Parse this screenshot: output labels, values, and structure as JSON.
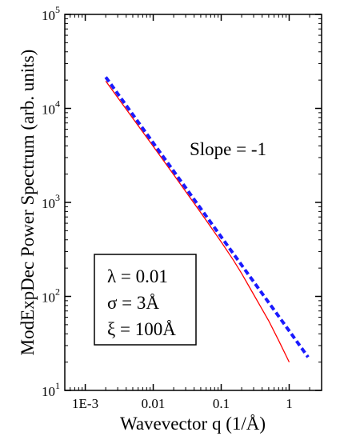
{
  "chart_data": {
    "type": "line",
    "title": "",
    "xlabel": "Wavevector q (1/Å)",
    "ylabel": "ModExpDec Power Spectrum (arb. units)",
    "xscale": "log",
    "yscale": "log",
    "xlim": [
      0.0005,
      3
    ],
    "ylim": [
      10,
      100000
    ],
    "grid": false,
    "x_ticks": [
      {
        "value": 0.001,
        "label": "1E-3"
      },
      {
        "value": 0.01,
        "label": "0.01"
      },
      {
        "value": 0.1,
        "label": "0.1"
      },
      {
        "value": 1,
        "label": "1"
      }
    ],
    "y_ticks": [
      {
        "value": 10,
        "base": "10",
        "exp": "1"
      },
      {
        "value": 100,
        "base": "10",
        "exp": "2"
      },
      {
        "value": 1000,
        "base": "10",
        "exp": "3"
      },
      {
        "value": 10000,
        "base": "10",
        "exp": "4"
      },
      {
        "value": 100000,
        "base": "10",
        "exp": "5"
      }
    ],
    "series": [
      {
        "color": "#ff0000",
        "style": "solid",
        "x": [
          0.002,
          0.005,
          0.01,
          0.02,
          0.05,
          0.1,
          0.15,
          0.2,
          0.3,
          0.5,
          0.7,
          1.0
        ],
        "y": [
          19500,
          7850,
          3950,
          1970,
          780,
          380,
          245,
          175,
          105,
          55,
          34,
          20
        ]
      },
      {
        "color": "#1a1aff",
        "style": "dashed",
        "x": [
          0.002,
          0.01,
          0.1,
          1.0,
          1.9
        ],
        "y": [
          21500,
          4300,
          430,
          43,
          22.6
        ]
      }
    ],
    "annotations": [
      {
        "id": "slope",
        "text": "Slope = -1"
      }
    ],
    "param_box": [
      {
        "symbol": "λ",
        "text": " = 0.01"
      },
      {
        "symbol": "σ",
        "text": " = 3Å"
      },
      {
        "symbol": "ξ",
        "text": " = 100Å"
      }
    ]
  }
}
